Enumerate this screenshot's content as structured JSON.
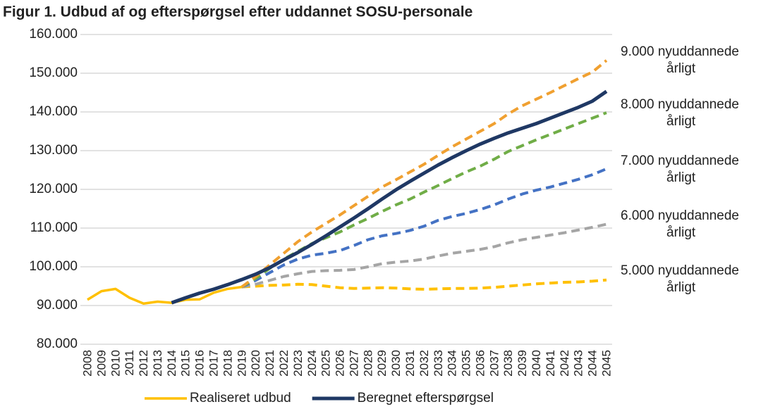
{
  "chart_data": {
    "type": "line",
    "title": "Figur 1. Udbud af og efterspørgsel efter uddannet SOSU-personale",
    "categories": [
      "2008",
      "2009",
      "2010",
      "2011",
      "2012",
      "2013",
      "2014",
      "2015",
      "2016",
      "2017",
      "2018",
      "2019",
      "2020",
      "2021",
      "2022",
      "2023",
      "2024",
      "2025",
      "2026",
      "2027",
      "2028",
      "2029",
      "2030",
      "2031",
      "2032",
      "2033",
      "2034",
      "2035",
      "2036",
      "2037",
      "2038",
      "2039",
      "2040",
      "2041",
      "2042",
      "2043",
      "2044",
      "2045"
    ],
    "ylim": [
      80000,
      160000
    ],
    "yticks": [
      {
        "value": 80000,
        "label": "80.000"
      },
      {
        "value": 90000,
        "label": "90.000"
      },
      {
        "value": 100000,
        "label": "100.000"
      },
      {
        "value": 110000,
        "label": "110.000"
      },
      {
        "value": 120000,
        "label": "120.000"
      },
      {
        "value": 130000,
        "label": "130.000"
      },
      {
        "value": 140000,
        "label": "140.000"
      },
      {
        "value": 150000,
        "label": "150.000"
      },
      {
        "value": 160000,
        "label": "160.000"
      }
    ],
    "grid": true,
    "series": [
      {
        "name": "Realiseret udbud",
        "color": "#ffc000",
        "dashed": false,
        "values": [
          91500,
          93700,
          94300,
          92000,
          90500,
          91000,
          90700,
          91500,
          91600,
          93300,
          94300,
          94800,
          null,
          null,
          null,
          null,
          null,
          null,
          null,
          null,
          null,
          null,
          null,
          null,
          null,
          null,
          null,
          null,
          null,
          null,
          null,
          null,
          null,
          null,
          null,
          null,
          null,
          null
        ]
      },
      {
        "name": "Beregnet efterspørgsel",
        "color": "#1f3864",
        "dashed": false,
        "values": [
          null,
          null,
          null,
          null,
          null,
          null,
          90700,
          92000,
          93200,
          94200,
          95400,
          96700,
          98100,
          99800,
          101800,
          103700,
          105800,
          108000,
          110300,
          112600,
          115000,
          117500,
          119900,
          122100,
          124200,
          126300,
          128200,
          130000,
          131700,
          133200,
          134600,
          135800,
          137000,
          138400,
          139800,
          141200,
          142800,
          145300
        ]
      },
      {
        "label_lines": [
          "5.000 nyuddannede",
          "årligt"
        ],
        "color": "#ffc000",
        "dashed": true,
        "values": [
          null,
          null,
          null,
          null,
          null,
          null,
          null,
          null,
          null,
          null,
          null,
          94800,
          95000,
          95200,
          95300,
          95500,
          95400,
          95000,
          94600,
          94400,
          94500,
          94600,
          94500,
          94300,
          94200,
          94300,
          94400,
          94400,
          94500,
          94700,
          95000,
          95300,
          95600,
          95800,
          96000,
          96100,
          96300,
          96600
        ]
      },
      {
        "label_lines": [
          "6.000 nyuddannede",
          "årligt"
        ],
        "color": "#a5a5a5",
        "dashed": true,
        "values": [
          null,
          null,
          null,
          null,
          null,
          null,
          null,
          null,
          null,
          null,
          null,
          94800,
          95500,
          96500,
          97500,
          98200,
          98800,
          99000,
          99100,
          99300,
          100000,
          100800,
          101200,
          101500,
          102000,
          102800,
          103500,
          104000,
          104500,
          105200,
          106200,
          107000,
          107600,
          108200,
          108800,
          109500,
          110200,
          111000
        ]
      },
      {
        "label_lines": [
          "7.000 nyuddannede",
          "årligt"
        ],
        "color": "#4472c4",
        "dashed": true,
        "values": [
          null,
          null,
          null,
          null,
          null,
          null,
          null,
          null,
          null,
          null,
          null,
          94800,
          96500,
          98500,
          100500,
          102000,
          103000,
          103500,
          104200,
          105500,
          107000,
          108000,
          108600,
          109400,
          110500,
          112000,
          113000,
          113800,
          114800,
          116000,
          117500,
          118800,
          119800,
          120600,
          121600,
          122600,
          123800,
          125300
        ]
      },
      {
        "label_lines": [
          "8.000 nyuddannede",
          "årligt"
        ],
        "color": "#70ad47",
        "dashed": true,
        "values": [
          null,
          null,
          null,
          null,
          null,
          null,
          null,
          null,
          null,
          null,
          null,
          94800,
          97000,
          99600,
          102000,
          104000,
          106000,
          107500,
          109000,
          110800,
          112500,
          114300,
          116000,
          117500,
          119300,
          121000,
          122800,
          124500,
          126000,
          127800,
          129800,
          131300,
          132800,
          134200,
          135600,
          137000,
          138400,
          139800
        ]
      },
      {
        "label_lines": [
          "9.000 nyuddannede",
          "årligt"
        ],
        "color": "#f0a030",
        "dashed": true,
        "values": [
          null,
          null,
          null,
          null,
          null,
          null,
          null,
          null,
          null,
          null,
          null,
          94800,
          97500,
          100500,
          103500,
          106500,
          109000,
          111200,
          113400,
          115800,
          118200,
          120600,
          122500,
          124500,
          126500,
          128800,
          131000,
          133000,
          135000,
          137000,
          139500,
          141600,
          143300,
          145000,
          146800,
          148600,
          150300,
          153300
        ]
      }
    ]
  }
}
